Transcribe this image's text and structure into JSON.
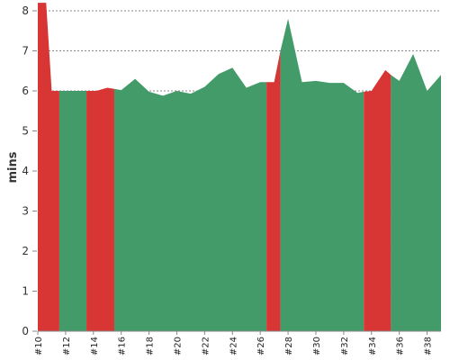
{
  "chart_data": {
    "type": "area",
    "ylabel": "mins",
    "xlabel": "",
    "ylim": [
      0,
      8
    ],
    "y_ticks": [
      0,
      1,
      2,
      3,
      4,
      5,
      6,
      7,
      8
    ],
    "grid": "horizontal dashed",
    "x_tick_labels": [
      "#10",
      "#12",
      "#14",
      "#16",
      "#18",
      "#20",
      "#22",
      "#24",
      "#26",
      "#28",
      "#30",
      "#32",
      "#34",
      "#36",
      "#38"
    ],
    "points": [
      {
        "x": 10.0,
        "y": 8.2,
        "status": "fail"
      },
      {
        "x": 10.6,
        "y": 8.2,
        "status": "fail"
      },
      {
        "x": 11.0,
        "y": 6.0,
        "status": "fail"
      },
      {
        "x": 11.55,
        "y": 6.0,
        "status": "fail"
      },
      {
        "x": 11.55,
        "y": 6.0,
        "status": "pass"
      },
      {
        "x": 13.5,
        "y": 6.0,
        "status": "pass"
      },
      {
        "x": 13.5,
        "y": 6.0,
        "status": "fail"
      },
      {
        "x": 14.2,
        "y": 6.0,
        "status": "fail"
      },
      {
        "x": 15.0,
        "y": 6.08,
        "status": "fail"
      },
      {
        "x": 15.5,
        "y": 6.05,
        "status": "fail"
      },
      {
        "x": 15.5,
        "y": 6.05,
        "status": "pass"
      },
      {
        "x": 16.0,
        "y": 6.02,
        "status": "pass"
      },
      {
        "x": 17.0,
        "y": 6.3,
        "status": "pass"
      },
      {
        "x": 18.0,
        "y": 5.98,
        "status": "pass"
      },
      {
        "x": 19.0,
        "y": 5.88,
        "status": "pass"
      },
      {
        "x": 20.0,
        "y": 6.0,
        "status": "pass"
      },
      {
        "x": 21.0,
        "y": 5.93,
        "status": "pass"
      },
      {
        "x": 22.0,
        "y": 6.1,
        "status": "pass"
      },
      {
        "x": 23.0,
        "y": 6.42,
        "status": "pass"
      },
      {
        "x": 24.0,
        "y": 6.58,
        "status": "pass"
      },
      {
        "x": 25.0,
        "y": 6.08,
        "status": "pass"
      },
      {
        "x": 26.0,
        "y": 6.22,
        "status": "pass"
      },
      {
        "x": 26.45,
        "y": 6.22,
        "status": "pass"
      },
      {
        "x": 26.45,
        "y": 6.22,
        "status": "fail"
      },
      {
        "x": 27.0,
        "y": 6.22,
        "status": "fail"
      },
      {
        "x": 27.45,
        "y": 7.0,
        "status": "fail"
      },
      {
        "x": 27.45,
        "y": 7.0,
        "status": "pass"
      },
      {
        "x": 28.0,
        "y": 7.8,
        "status": "pass"
      },
      {
        "x": 29.0,
        "y": 6.22,
        "status": "pass"
      },
      {
        "x": 30.0,
        "y": 6.25,
        "status": "pass"
      },
      {
        "x": 31.0,
        "y": 6.2,
        "status": "pass"
      },
      {
        "x": 32.0,
        "y": 6.2,
        "status": "pass"
      },
      {
        "x": 33.0,
        "y": 5.95,
        "status": "pass"
      },
      {
        "x": 33.45,
        "y": 5.98,
        "status": "pass"
      },
      {
        "x": 33.45,
        "y": 5.98,
        "status": "fail"
      },
      {
        "x": 34.0,
        "y": 6.0,
        "status": "fail"
      },
      {
        "x": 35.0,
        "y": 6.52,
        "status": "fail"
      },
      {
        "x": 35.4,
        "y": 6.4,
        "status": "fail"
      },
      {
        "x": 35.4,
        "y": 6.4,
        "status": "pass"
      },
      {
        "x": 36.0,
        "y": 6.25,
        "status": "pass"
      },
      {
        "x": 37.0,
        "y": 6.92,
        "status": "pass"
      },
      {
        "x": 38.0,
        "y": 6.0,
        "status": "pass"
      },
      {
        "x": 39.0,
        "y": 6.4,
        "status": "pass"
      }
    ],
    "colors": {
      "pass": "#439b6a",
      "fail": "#d83535",
      "grid": "#888888",
      "axis": "#888888"
    }
  }
}
